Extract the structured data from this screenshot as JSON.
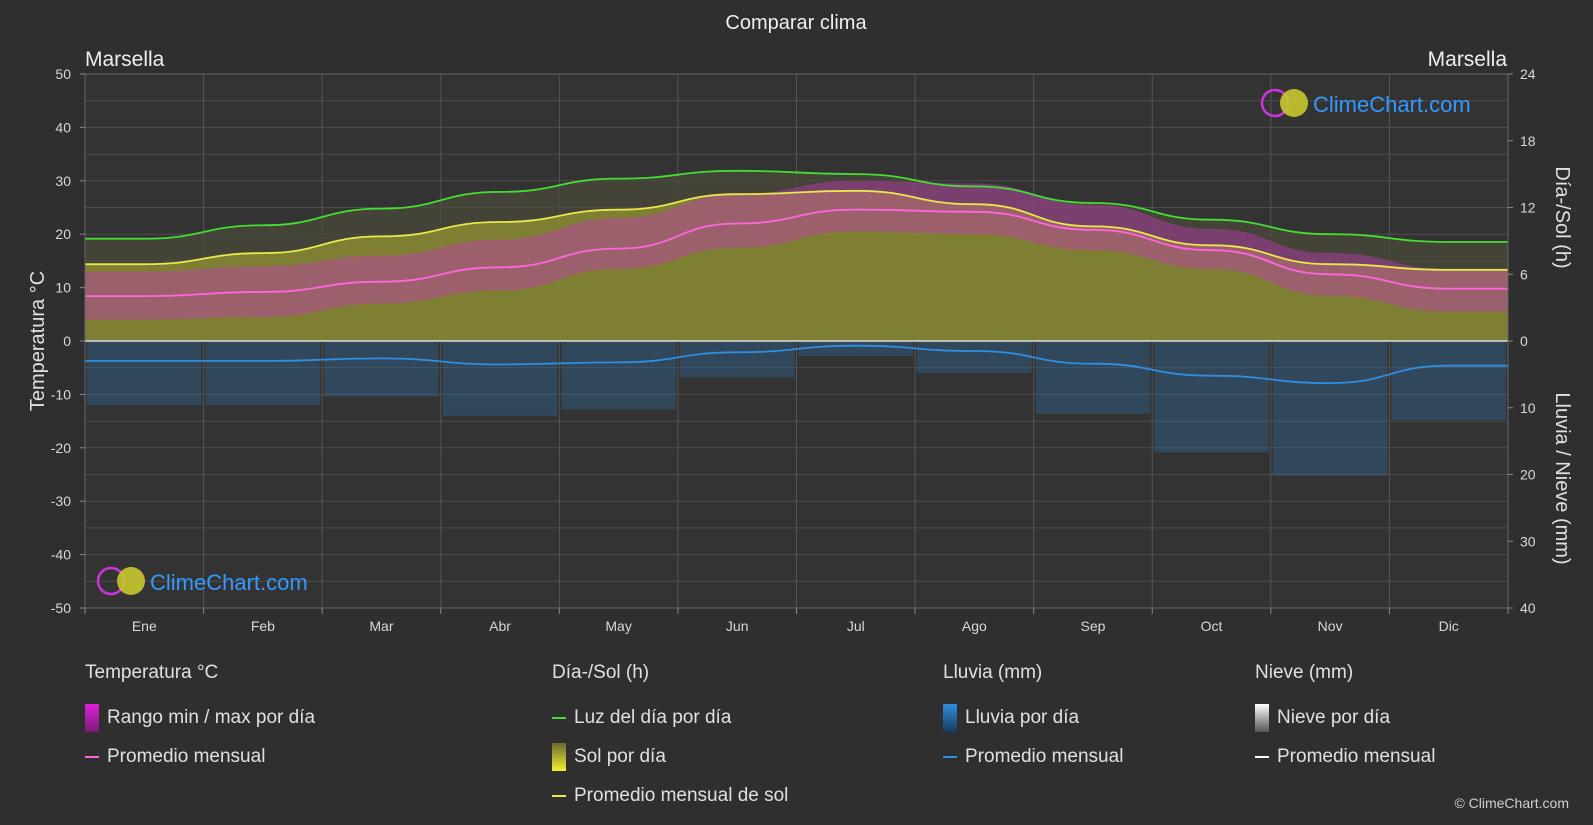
{
  "header": {
    "title": "Comparar clima"
  },
  "location_left": "Marsella",
  "location_right": "Marsella",
  "logo_text": "ClimeChart.com",
  "copyright": "© ClimeChart.com",
  "colors": {
    "background": "#2f2f2f",
    "daylight": "#44dd33",
    "sun_avg": "#e8e84a",
    "sun_fill": "#9a9a38",
    "temp_avg": "#ff66dd",
    "temp_range": "#d040c0",
    "rain": "#2f8ee0",
    "snow": "#ffffff",
    "logo_text": "#3399ff"
  },
  "legend": {
    "groups": [
      {
        "title": "Temperatura °C",
        "items": [
          {
            "label": "Rango min / max por día",
            "kind": "bar",
            "color": "#e020d8"
          },
          {
            "label": "Promedio mensual",
            "kind": "line",
            "color": "#ff66dd"
          }
        ]
      },
      {
        "title": "Día-/Sol (h)",
        "items": [
          {
            "label": "Luz del día por día",
            "kind": "line",
            "color": "#44dd33"
          },
          {
            "label": "Sol por día",
            "kind": "bar",
            "color": "#d8d830"
          },
          {
            "label": "Promedio mensual de sol",
            "kind": "line",
            "color": "#e8e84a"
          }
        ]
      },
      {
        "title": "Lluvia (mm)",
        "items": [
          {
            "label": "Lluvia por día",
            "kind": "bar",
            "color": "#2f8ee0"
          },
          {
            "label": "Promedio mensual",
            "kind": "line",
            "color": "#2f8ee0"
          }
        ]
      },
      {
        "title": "Nieve (mm)",
        "items": [
          {
            "label": "Nieve por día",
            "kind": "bar",
            "color": "#dddddd"
          },
          {
            "label": "Promedio mensual",
            "kind": "line",
            "color": "#ffffff"
          }
        ]
      }
    ]
  },
  "chart_data": {
    "type": "area",
    "title": "Comparar clima",
    "categories": [
      "Ene",
      "Feb",
      "Mar",
      "Abr",
      "May",
      "Jun",
      "Jul",
      "Ago",
      "Sep",
      "Oct",
      "Nov",
      "Dic"
    ],
    "y_left": {
      "label": "Temperatura °C",
      "range": [
        -50,
        50
      ],
      "ticks": [
        50,
        40,
        30,
        20,
        10,
        0,
        -10,
        -20,
        -30,
        -40,
        -50
      ]
    },
    "y_right_top": {
      "label": "Día-/Sol (h)",
      "range": [
        0,
        24
      ],
      "ticks": [
        24,
        18,
        12,
        6,
        0
      ]
    },
    "y_right_bottom": {
      "label": "Lluvia / Nieve (mm)",
      "range": [
        0,
        40
      ],
      "ticks": [
        10,
        20,
        30,
        40
      ]
    },
    "grid": true,
    "series": [
      {
        "name": "Luz del día por día",
        "axis": "sun_hours",
        "values": [
          9.2,
          10.4,
          11.9,
          13.4,
          14.6,
          15.3,
          15.0,
          13.9,
          12.4,
          10.9,
          9.6,
          8.9
        ]
      },
      {
        "name": "Promedio mensual de sol",
        "axis": "sun_hours",
        "values": [
          6.9,
          7.9,
          9.4,
          10.7,
          11.8,
          13.2,
          13.5,
          12.3,
          10.3,
          8.6,
          6.9,
          6.4
        ]
      },
      {
        "name": "Promedio mensual",
        "axis": "temperature",
        "values": [
          8.4,
          9.2,
          11.1,
          13.8,
          17.3,
          22.0,
          24.6,
          24.2,
          20.8,
          17.0,
          12.5,
          9.8
        ]
      },
      {
        "name": "Temperatura rango",
        "axis": "temperature",
        "min": [
          4.0,
          4.5,
          7.0,
          9.5,
          13.5,
          17.5,
          20.5,
          20.0,
          17.0,
          13.5,
          8.5,
          5.5
        ],
        "max": [
          13.0,
          14.0,
          16.0,
          19.0,
          23.0,
          27.5,
          30.0,
          29.5,
          25.5,
          21.0,
          16.5,
          13.5
        ]
      },
      {
        "name": "Promedio mensual",
        "axis": "rain_mm",
        "values": [
          3.0,
          3.0,
          2.6,
          3.5,
          3.2,
          1.7,
          0.7,
          1.5,
          3.4,
          5.2,
          6.3,
          3.7
        ]
      }
    ]
  }
}
